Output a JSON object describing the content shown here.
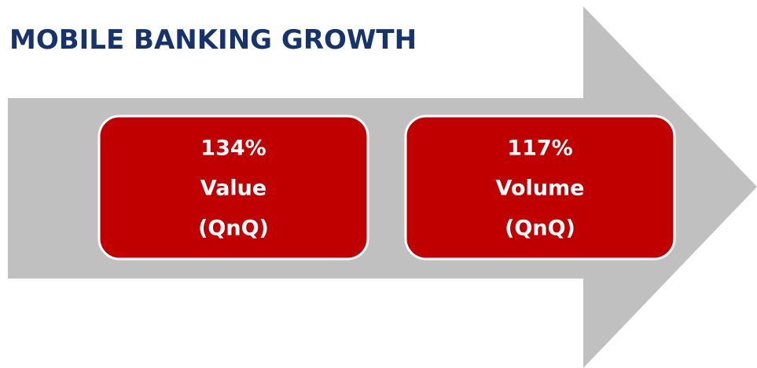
{
  "header": {
    "title": "MOBILE BANKING GROWTH"
  },
  "boxes": [
    {
      "figure": "134%",
      "label": "Value",
      "period": "(QnQ)"
    },
    {
      "figure": "117%",
      "label": "Volume",
      "period": "(QnQ)"
    }
  ]
}
